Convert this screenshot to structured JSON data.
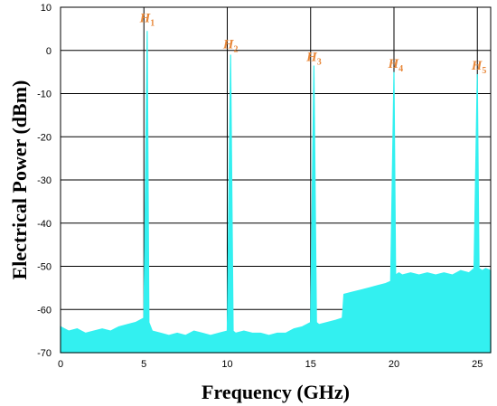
{
  "chart_data": {
    "type": "line",
    "xlabel": "Frequency (GHz)",
    "ylabel": "Electrical Power (dBm)",
    "xlim": [
      0,
      25.8
    ],
    "ylim": [
      -70,
      10
    ],
    "xticks": [
      0,
      5,
      10,
      15,
      20,
      25
    ],
    "yticks": [
      10,
      0,
      -10,
      -20,
      -30,
      -40,
      -50,
      -60,
      -70
    ],
    "grid": true,
    "line_color": "#33f0f0",
    "annotation_color": "#e8883a",
    "series": [
      {
        "x": [
          0.0,
          0.5,
          1.0,
          1.5,
          2.0,
          2.5,
          3.0,
          3.5,
          4.0,
          4.5,
          5.0,
          5.2,
          5.3,
          5.5,
          6.0,
          6.5,
          7.0,
          7.5,
          8.0,
          8.5,
          9.0,
          9.5,
          10.0,
          10.2,
          10.35,
          10.5,
          11.0,
          11.5,
          12.0,
          12.5,
          13.0,
          13.5,
          14.0,
          14.5,
          15.0,
          15.2,
          15.35,
          15.5,
          16.0,
          16.5,
          16.9,
          17.0,
          17.5,
          18.0,
          18.5,
          19.0,
          19.5,
          19.8,
          20.0,
          20.1,
          20.3,
          20.5,
          21.0,
          21.5,
          22.0,
          22.5,
          23.0,
          23.5,
          24.0,
          24.5,
          24.8,
          25.0,
          25.1,
          25.3,
          25.5,
          25.8
        ],
        "y": [
          -64,
          -65,
          -64.5,
          -65.5,
          -65,
          -64.5,
          -65,
          -64,
          -63.5,
          -63,
          -62,
          4.5,
          -63,
          -65,
          -65.5,
          -66,
          -65.5,
          -66,
          -65,
          -65.5,
          -66,
          -65.5,
          -65,
          -1,
          -65,
          -65.5,
          -65,
          -65.5,
          -65.5,
          -66,
          -65.5,
          -65.5,
          -64.5,
          -64,
          -63,
          -3.5,
          -63,
          -63.5,
          -63,
          -62.5,
          -62,
          -56.5,
          -56,
          -55.5,
          -55,
          -54.5,
          -54,
          -53.5,
          -5,
          -52,
          -51.5,
          -52,
          -51.5,
          -52,
          -51.5,
          -52,
          -51.5,
          -52,
          -51,
          -51.5,
          -50.5,
          -5.5,
          -50.5,
          -51,
          -50.5,
          -51
        ]
      }
    ],
    "annotations": [
      {
        "text": "H",
        "sub": "1",
        "x": 5.2,
        "y": 6.5
      },
      {
        "text": "H",
        "sub": "2",
        "x": 10.2,
        "y": 0.5
      },
      {
        "text": "H",
        "sub": "3",
        "x": 15.2,
        "y": -2.5
      },
      {
        "text": "H",
        "sub": "4",
        "x": 20.1,
        "y": -4
      },
      {
        "text": "H",
        "sub": "5",
        "x": 25.1,
        "y": -4.5
      }
    ]
  }
}
